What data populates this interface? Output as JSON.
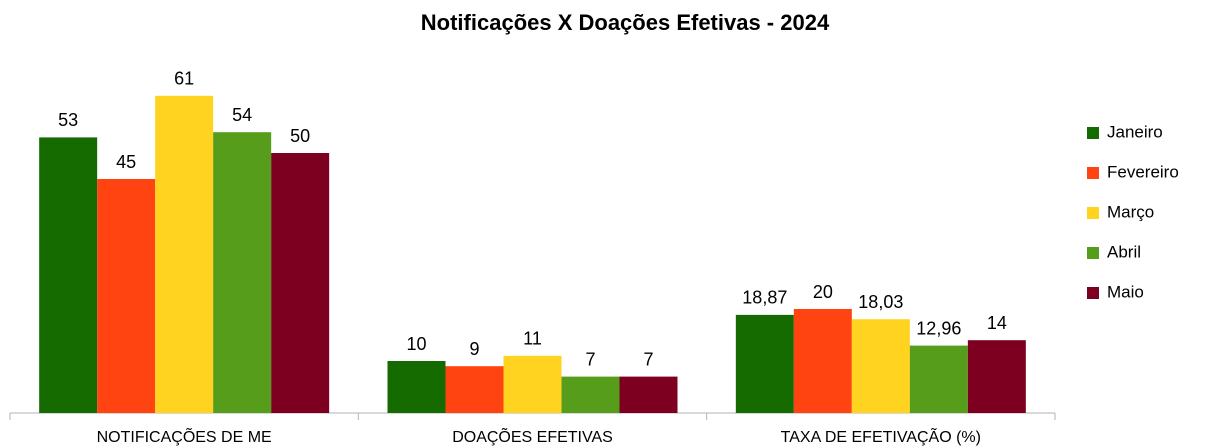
{
  "chart_data": {
    "type": "bar",
    "title": "Notificações X Doações Efetivas - 2024",
    "categories": [
      "NOTIFICAÇÕES DE ME",
      "DOAÇÕES EFETIVAS",
      "TAXA DE EFETIVAÇÃO (%)"
    ],
    "series": [
      {
        "name": "Janeiro",
        "color": "#156b00",
        "values": [
          53,
          10,
          18.87
        ],
        "value_labels": [
          "53",
          "10",
          "18,87"
        ]
      },
      {
        "name": "Fevereiro",
        "color": "#ff4412",
        "values": [
          45,
          9,
          20
        ]
      },
      {
        "name": "Março",
        "color": "#ffd31f",
        "values": [
          61,
          11,
          18.03
        ],
        "value_labels": [
          "61",
          "11",
          "18,03"
        ]
      },
      {
        "name": "Abril",
        "color": "#579d1c",
        "values": [
          54,
          7,
          12.96
        ],
        "value_labels": [
          "54",
          "7",
          "12,96"
        ]
      },
      {
        "name": "Maio",
        "color": "#7e0021",
        "values": [
          50,
          7,
          14
        ]
      }
    ],
    "ylim": [
      0,
      70
    ],
    "legend": "right"
  }
}
